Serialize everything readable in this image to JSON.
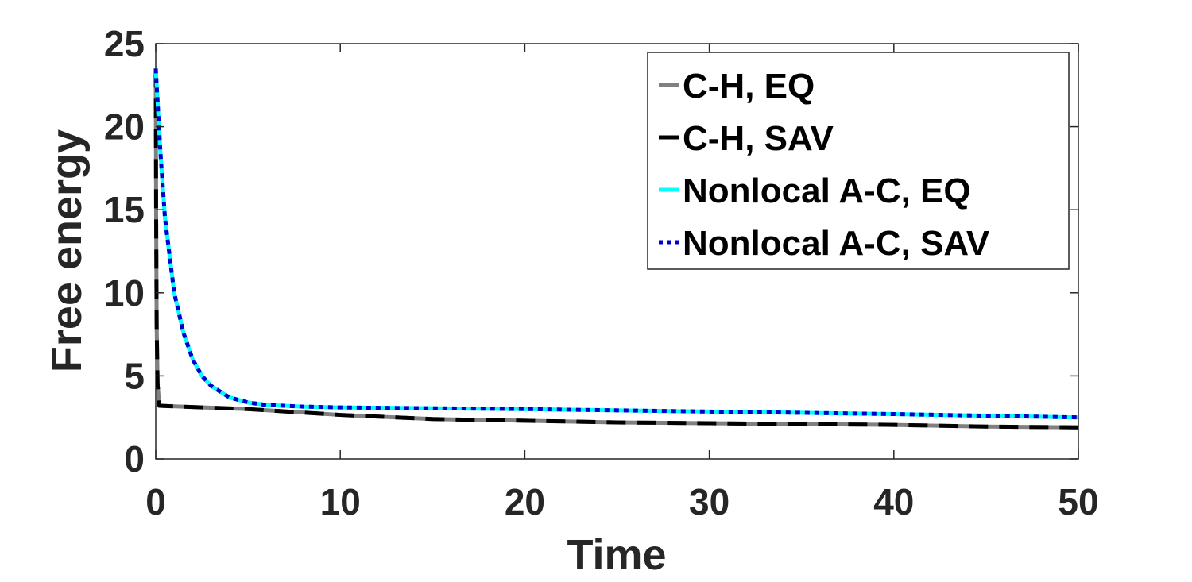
{
  "chart_data": {
    "type": "line",
    "title": "",
    "xlabel": "Time",
    "ylabel": "Free energy",
    "xlim": [
      0,
      50
    ],
    "ylim": [
      0,
      25
    ],
    "xticks": [
      0,
      10,
      20,
      30,
      40,
      50
    ],
    "yticks": [
      0,
      5,
      10,
      15,
      20,
      25
    ],
    "x_tick_labels": [
      "0",
      "10",
      "20",
      "30",
      "40",
      "50"
    ],
    "y_tick_labels": [
      "0",
      "5",
      "10",
      "15",
      "20",
      "25"
    ],
    "grid": false,
    "legend_position": "top-right",
    "series": [
      {
        "name": "C-H, EQ",
        "color": "#808080",
        "style": "solid",
        "x": [
          0,
          0.02,
          0.05,
          0.1,
          0.2,
          5,
          10,
          15,
          20,
          25,
          30,
          35,
          40,
          45,
          50
        ],
        "y": [
          23.5,
          15.0,
          8.0,
          4.5,
          3.2,
          3.0,
          2.65,
          2.4,
          2.3,
          2.2,
          2.15,
          2.1,
          2.05,
          1.95,
          1.9
        ]
      },
      {
        "name": "C-H, SAV",
        "color": "#000000",
        "style": "dashed",
        "x": [
          0,
          0.02,
          0.05,
          0.1,
          0.2,
          5,
          10,
          15,
          20,
          25,
          30,
          35,
          40,
          45,
          50
        ],
        "y": [
          23.5,
          15.0,
          8.0,
          4.5,
          3.2,
          3.0,
          2.65,
          2.4,
          2.3,
          2.2,
          2.15,
          2.1,
          2.05,
          1.95,
          1.9
        ]
      },
      {
        "name": "Nonlocal A-C, EQ",
        "color": "#00ffff",
        "style": "solid",
        "x": [
          0,
          0.25,
          0.5,
          1,
          1.5,
          2,
          2.5,
          3,
          4,
          5,
          6,
          8,
          10,
          20,
          30,
          40,
          50
        ],
        "y": [
          23.5,
          18.5,
          14.5,
          10.0,
          7.6,
          6.0,
          5.0,
          4.4,
          3.7,
          3.4,
          3.25,
          3.15,
          3.1,
          3.0,
          2.85,
          2.7,
          2.5
        ]
      },
      {
        "name": "Nonlocal A-C, SAV",
        "color": "#0000cd",
        "style": "dotted",
        "x": [
          0,
          0.25,
          0.5,
          1,
          1.5,
          2,
          2.5,
          3,
          4,
          5,
          6,
          8,
          10,
          20,
          30,
          40,
          50
        ],
        "y": [
          23.5,
          18.5,
          14.5,
          10.0,
          7.6,
          6.0,
          5.0,
          4.4,
          3.7,
          3.4,
          3.25,
          3.15,
          3.1,
          3.0,
          2.85,
          2.7,
          2.5
        ]
      }
    ]
  }
}
